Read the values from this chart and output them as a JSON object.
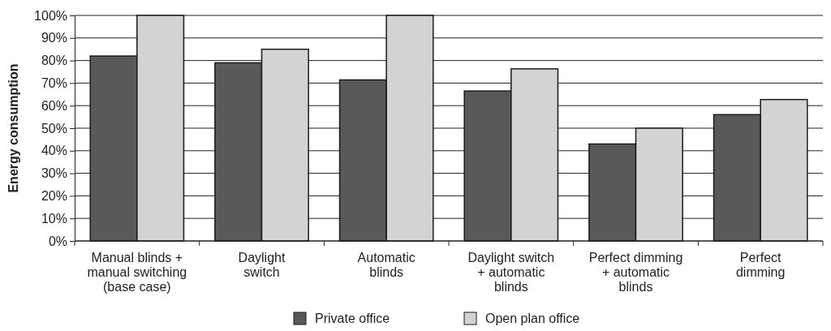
{
  "chart_data": {
    "type": "bar",
    "ylabel": "Energy consumption",
    "categories": [
      "Manual blinds +\nmanual switching\n(base case)",
      "Daylight\nswitch",
      "Automatic\nblinds",
      "Daylight switch\n+ automatic\nblinds",
      "Perfect dimming\n+ automatic\nblinds",
      "Perfect\ndimming"
    ],
    "series": [
      {
        "name": "Private office",
        "color": "#58595b",
        "values": [
          82,
          79,
          71.4,
          66.5,
          43,
          56
        ]
      },
      {
        "name": "Open plan office",
        "color": "#d1d3d4",
        "values": [
          100,
          85,
          100,
          76.3,
          50,
          62.7
        ]
      }
    ],
    "ylim": [
      0,
      100
    ],
    "yticks": [
      {
        "value": 0,
        "label": "0%"
      },
      {
        "value": 10,
        "label": "10%"
      },
      {
        "value": 20,
        "label": "20%"
      },
      {
        "value": 30,
        "label": "30%"
      },
      {
        "value": 40,
        "label": "40%"
      },
      {
        "value": 50,
        "label": "50%"
      },
      {
        "value": 60,
        "label": "60%"
      },
      {
        "value": 70,
        "label": "70%"
      },
      {
        "value": 80,
        "label": "80%"
      },
      {
        "value": 90,
        "label": "90%"
      },
      {
        "value": 100,
        "label": "100%"
      }
    ],
    "grid": "y",
    "legend": "bottom"
  }
}
